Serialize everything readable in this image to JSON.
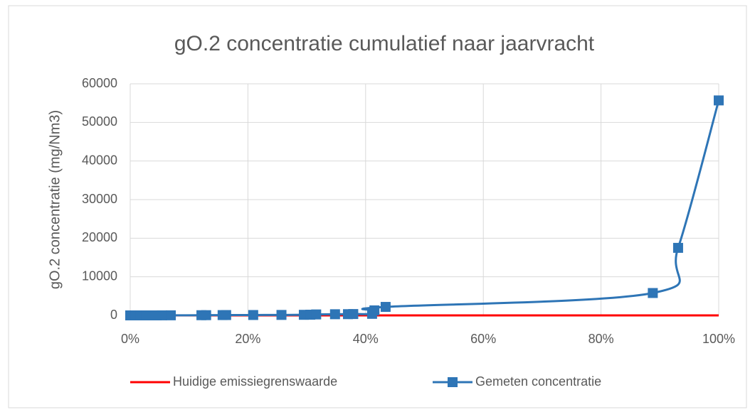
{
  "chart_data": {
    "type": "line",
    "title": "gO.2 concentratie cumulatief naar jaarvracht",
    "y_label": "gO.2 concentratie (mg/Nm3)",
    "xlim": [
      0,
      100
    ],
    "xticks": [
      {
        "value": 0,
        "label": "0%"
      },
      {
        "value": 20,
        "label": "20%"
      },
      {
        "value": 40,
        "label": "40%"
      },
      {
        "value": 60,
        "label": "60%"
      },
      {
        "value": 80,
        "label": "80%"
      },
      {
        "value": 100,
        "label": "100%"
      }
    ],
    "ylim": [
      0,
      60000
    ],
    "yticks": [
      0,
      10000,
      20000,
      30000,
      40000,
      50000,
      60000
    ],
    "grid": true,
    "legend": "bottom",
    "series": [
      {
        "name": "Huidige emissiegrenswaarde",
        "color": "#ff0000",
        "markers": false,
        "x": [
          0,
          100
        ],
        "values": [
          0,
          0
        ]
      },
      {
        "name": "Gemeten concentratie",
        "color": "#2e75b6",
        "markers": true,
        "x": [
          0,
          0.9,
          1.8,
          2.7,
          3.5,
          4.5,
          5.4,
          6.9,
          12.1,
          12.9,
          15.7,
          16.3,
          20.9,
          25.7,
          29.5,
          30.6,
          31.6,
          34.8,
          37,
          37.9,
          41.1,
          41.5,
          43.4,
          88.8,
          93.1,
          100
        ],
        "values": [
          0,
          0,
          0,
          0,
          0,
          0,
          10,
          20,
          50,
          60,
          80,
          90,
          100,
          120,
          150,
          180,
          250,
          300,
          320,
          350,
          400,
          1300,
          2200,
          5800,
          17500,
          55700
        ]
      }
    ]
  }
}
